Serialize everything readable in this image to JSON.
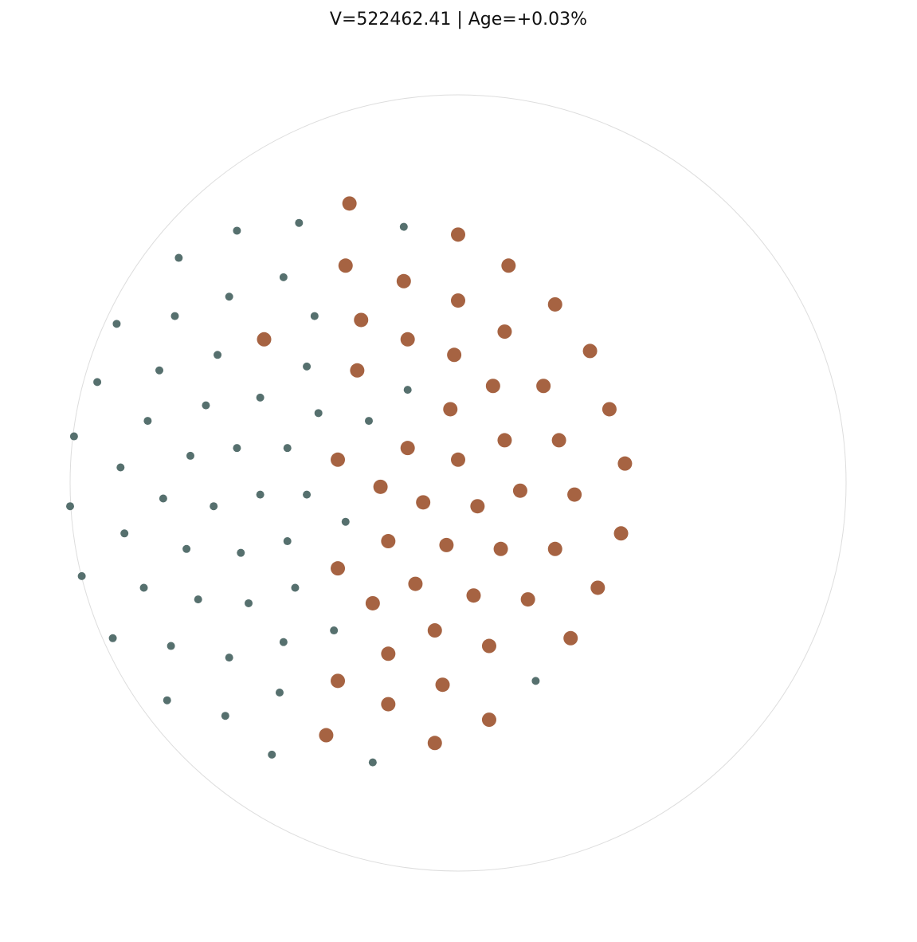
{
  "chart_data": {
    "type": "scatter",
    "title": "V=522462.41 | Age=+0.03%",
    "xlim": [
      -1,
      1
    ],
    "ylim": [
      -1,
      1
    ],
    "boundary": "unit-circle",
    "grid": false,
    "axes_visible": false,
    "series": [
      {
        "color": "#a66342",
        "marker_size": "large",
        "points": [
          [
            -0.28,
            0.72
          ],
          [
            0.0,
            0.64
          ],
          [
            0.13,
            0.56
          ],
          [
            -0.29,
            0.56
          ],
          [
            -0.14,
            0.52
          ],
          [
            0.0,
            0.47
          ],
          [
            0.25,
            0.46
          ],
          [
            -0.25,
            0.42
          ],
          [
            -0.5,
            0.37
          ],
          [
            -0.13,
            0.37
          ],
          [
            0.12,
            0.39
          ],
          [
            -0.01,
            0.33
          ],
          [
            0.34,
            0.34
          ],
          [
            -0.26,
            0.29
          ],
          [
            0.09,
            0.25
          ],
          [
            0.22,
            0.25
          ],
          [
            -0.02,
            0.19
          ],
          [
            0.39,
            0.19
          ],
          [
            0.12,
            0.11
          ],
          [
            0.26,
            0.11
          ],
          [
            -0.13,
            0.09
          ],
          [
            0.0,
            0.06
          ],
          [
            -0.31,
            0.06
          ],
          [
            0.43,
            0.05
          ],
          [
            -0.2,
            -0.01
          ],
          [
            -0.09,
            -0.05
          ],
          [
            0.05,
            -0.06
          ],
          [
            0.16,
            -0.02
          ],
          [
            0.3,
            -0.03
          ],
          [
            0.42,
            -0.13
          ],
          [
            -0.18,
            -0.15
          ],
          [
            -0.03,
            -0.16
          ],
          [
            0.11,
            -0.17
          ],
          [
            0.25,
            -0.17
          ],
          [
            -0.31,
            -0.22
          ],
          [
            -0.11,
            -0.26
          ],
          [
            0.04,
            -0.29
          ],
          [
            -0.22,
            -0.31
          ],
          [
            0.18,
            -0.3
          ],
          [
            0.36,
            -0.27
          ],
          [
            -0.06,
            -0.38
          ],
          [
            0.08,
            -0.42
          ],
          [
            -0.18,
            -0.44
          ],
          [
            0.29,
            -0.4
          ],
          [
            -0.31,
            -0.51
          ],
          [
            -0.04,
            -0.52
          ],
          [
            -0.18,
            -0.57
          ],
          [
            0.08,
            -0.61
          ],
          [
            -0.34,
            -0.65
          ],
          [
            -0.06,
            -0.67
          ]
        ]
      },
      {
        "color": "#56706e",
        "marker_size": "small",
        "points": [
          [
            -0.57,
            0.65
          ],
          [
            -0.41,
            0.67
          ],
          [
            -0.14,
            0.66
          ],
          [
            -0.72,
            0.58
          ],
          [
            -0.45,
            0.53
          ],
          [
            -0.59,
            0.48
          ],
          [
            -0.73,
            0.43
          ],
          [
            -0.37,
            0.43
          ],
          [
            -0.88,
            0.41
          ],
          [
            -0.62,
            0.33
          ],
          [
            -0.77,
            0.29
          ],
          [
            -0.39,
            0.3
          ],
          [
            -0.93,
            0.26
          ],
          [
            -0.13,
            0.24
          ],
          [
            -0.51,
            0.22
          ],
          [
            -0.65,
            0.2
          ],
          [
            -0.36,
            0.18
          ],
          [
            -0.23,
            0.16
          ],
          [
            -0.8,
            0.16
          ],
          [
            -0.99,
            0.12
          ],
          [
            -0.57,
            0.09
          ],
          [
            -0.44,
            0.09
          ],
          [
            -0.69,
            0.07
          ],
          [
            -0.87,
            0.04
          ],
          [
            -0.76,
            -0.04
          ],
          [
            -0.63,
            -0.06
          ],
          [
            -0.51,
            -0.03
          ],
          [
            -0.39,
            -0.03
          ],
          [
            -1.0,
            -0.06
          ],
          [
            -0.29,
            -0.1
          ],
          [
            -0.86,
            -0.13
          ],
          [
            -0.44,
            -0.15
          ],
          [
            -0.7,
            -0.17
          ],
          [
            -0.56,
            -0.18
          ],
          [
            -0.97,
            -0.24
          ],
          [
            -0.81,
            -0.27
          ],
          [
            -0.42,
            -0.27
          ],
          [
            -0.67,
            -0.3
          ],
          [
            -0.54,
            -0.31
          ],
          [
            -0.89,
            -0.4
          ],
          [
            -0.32,
            -0.38
          ],
          [
            -0.74,
            -0.42
          ],
          [
            -0.45,
            -0.41
          ],
          [
            -0.59,
            -0.45
          ],
          [
            0.2,
            -0.51
          ],
          [
            -0.46,
            -0.54
          ],
          [
            -0.75,
            -0.56
          ],
          [
            -0.6,
            -0.6
          ],
          [
            -0.48,
            -0.7
          ],
          [
            -0.22,
            -0.72
          ]
        ]
      }
    ]
  }
}
